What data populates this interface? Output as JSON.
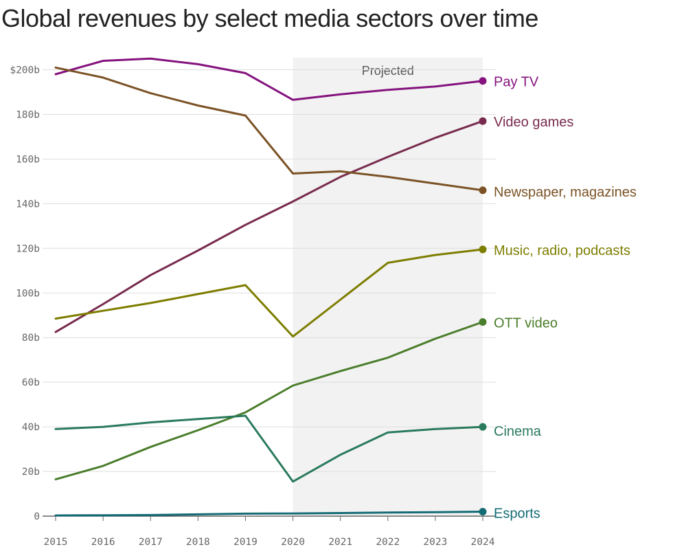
{
  "chart_data": {
    "type": "line",
    "title": "Global revenues by select media sectors over time",
    "xlabel": "",
    "ylabel": "",
    "x": [
      2015,
      2016,
      2017,
      2018,
      2019,
      2020,
      2021,
      2022,
      2023,
      2024
    ],
    "x_tick_labels": [
      "2015",
      "2016",
      "2017",
      "2018",
      "2019",
      "2020",
      "2021",
      "2022",
      "2023",
      "2024"
    ],
    "ylim": [
      0,
      200
    ],
    "y_ticks": [
      0,
      20,
      40,
      60,
      80,
      100,
      120,
      140,
      160,
      180,
      200
    ],
    "y_tick_labels": [
      "0",
      "20b",
      "40b",
      "60b",
      "80b",
      "100b",
      "120b",
      "140b",
      "160b",
      "180b",
      "$200b"
    ],
    "grid": "horizontal",
    "legend": "direct labels at line ends",
    "shaded_region": {
      "label": "Projected",
      "x_start": 2020,
      "x_end": 2024,
      "color": "#f2f2f2"
    },
    "series": [
      {
        "name": "Pay TV",
        "color": "#85127e",
        "values": [
          198,
          204,
          205,
          202.5,
          198.5,
          186.5,
          189,
          191,
          192.5,
          195
        ]
      },
      {
        "name": "Video games",
        "color": "#782b4e",
        "values": [
          82.5,
          95,
          108,
          119,
          130.5,
          141,
          152,
          161,
          169.5,
          177
        ]
      },
      {
        "name": "Newspaper, magazines",
        "color": "#7b5225",
        "values": [
          201,
          196.5,
          189.5,
          184,
          179.5,
          153.5,
          154.5,
          152,
          149,
          146
        ]
      },
      {
        "name": "Music, radio, podcasts",
        "color": "#7d7d00",
        "values": [
          88.5,
          92,
          95.5,
          99.5,
          103.5,
          80.5,
          97,
          113.5,
          117,
          119.5
        ]
      },
      {
        "name": "OTT video",
        "color": "#4a7d2b",
        "values": [
          16.5,
          22.5,
          31,
          38.5,
          46.5,
          58.5,
          65,
          71,
          79.5,
          87
        ]
      },
      {
        "name": "Cinema",
        "color": "#2a7a5c",
        "values": [
          39,
          40,
          42,
          43.5,
          45,
          15.5,
          27.5,
          37.5,
          39,
          40
        ]
      },
      {
        "name": "Esports",
        "color": "#136b74",
        "values": [
          0.3,
          0.4,
          0.5,
          0.8,
          1.1,
          1.2,
          1.4,
          1.6,
          1.8,
          2.0
        ]
      }
    ]
  }
}
